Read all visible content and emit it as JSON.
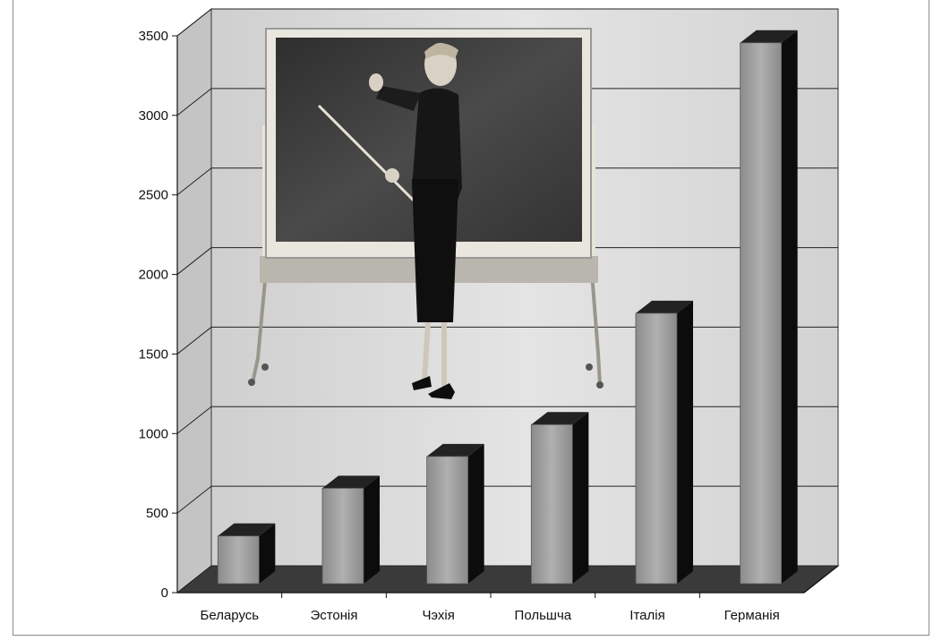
{
  "chart_data": {
    "type": "bar",
    "title": "",
    "xlabel": "",
    "ylabel": "",
    "categories": [
      "Беларусь",
      "Эстонія",
      "Чэхія",
      "Польшча",
      "Італія",
      "Германія"
    ],
    "values": [
      300,
      600,
      800,
      1000,
      1700,
      3400
    ],
    "ylim": [
      0,
      3500
    ],
    "yticks": [
      0,
      500,
      1000,
      1500,
      2000,
      2500,
      3000,
      3500
    ],
    "grid": true,
    "style": "3d-columns",
    "colors": {
      "bar_front": "#9a9a9a",
      "bar_side": "#0c0c0c",
      "bar_top": "#222222",
      "wall": "#d9d9d9",
      "floor": "#3a3a3a",
      "grid": "#222222"
    }
  }
}
